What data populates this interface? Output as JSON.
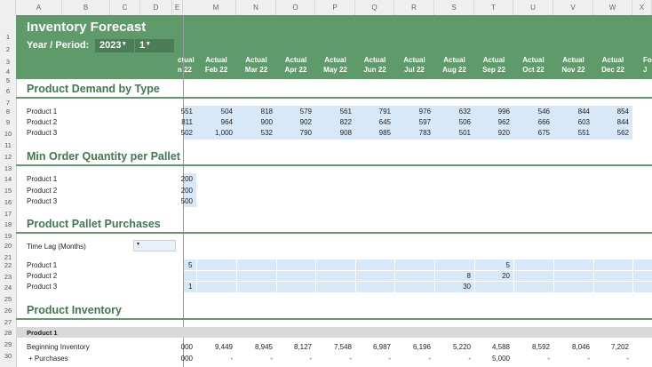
{
  "columns": {
    "left": [
      "A",
      "B",
      "C",
      "D",
      "E"
    ],
    "right": [
      "M",
      "N",
      "O",
      "P",
      "Q",
      "R",
      "S",
      "T",
      "U",
      "V",
      "W",
      "X"
    ]
  },
  "rows": [
    "1",
    "2",
    "3",
    "4",
    "5",
    "6",
    "7",
    "8",
    "9",
    "10",
    "11",
    "12",
    "13",
    "14",
    "15",
    "16",
    "17",
    "18",
    "19",
    "20",
    "21",
    "22",
    "23",
    "24",
    "25",
    "26",
    "27",
    "28",
    "29",
    "30"
  ],
  "header": {
    "title": "Inventory Forecast",
    "period_label": "Year / Period:",
    "year": "2023",
    "period": "1",
    "partial_col_top": "ctual",
    "partial_col_bottom": "n 22",
    "month_headers": [
      {
        "top": "Actual",
        "bottom": "Feb 22"
      },
      {
        "top": "Actual",
        "bottom": "Mar 22"
      },
      {
        "top": "Actual",
        "bottom": "Apr 22"
      },
      {
        "top": "Actual",
        "bottom": "May 22"
      },
      {
        "top": "Actual",
        "bottom": "Jun 22"
      },
      {
        "top": "Actual",
        "bottom": "Jul 22"
      },
      {
        "top": "Actual",
        "bottom": "Aug 22"
      },
      {
        "top": "Actual",
        "bottom": "Sep 22"
      },
      {
        "top": "Actual",
        "bottom": "Oct 22"
      },
      {
        "top": "Actual",
        "bottom": "Nov 22"
      },
      {
        "top": "Actual",
        "bottom": "Dec 22"
      },
      {
        "top": "Fo",
        "bottom": "J"
      }
    ]
  },
  "sections": {
    "demand": "Product Demand by Type",
    "min_order": "Min Order Quantity per Pallet",
    "purchases": "Product Pallet Purchases",
    "inventory": "Product Inventory"
  },
  "demand_rows": [
    {
      "label": "Product 1",
      "partial": "551",
      "values": [
        "504",
        "818",
        "579",
        "561",
        "791",
        "976",
        "632",
        "996",
        "546",
        "844",
        "854"
      ]
    },
    {
      "label": "Product 2",
      "partial": "811",
      "values": [
        "964",
        "900",
        "902",
        "822",
        "645",
        "597",
        "506",
        "962",
        "666",
        "603",
        "844"
      ]
    },
    {
      "label": "Product 3",
      "partial": "502",
      "values": [
        "1,000",
        "532",
        "790",
        "908",
        "985",
        "783",
        "501",
        "920",
        "675",
        "551",
        "562"
      ]
    }
  ],
  "min_order_rows": [
    {
      "label": "Product 1",
      "partial": "200"
    },
    {
      "label": "Product 2",
      "partial": "200"
    },
    {
      "label": "Product 3",
      "partial": "500"
    }
  ],
  "time_lag_label": "Time Lag (Months)",
  "purchase_rows": [
    {
      "label": "Product 1",
      "partial": "5",
      "values": [
        "",
        "",
        "",
        "",
        "",
        "",
        "",
        "5",
        "",
        "",
        "",
        ""
      ]
    },
    {
      "label": "Product 2",
      "partial": "",
      "values": [
        "",
        "",
        "",
        "",
        "",
        "",
        "8",
        "20",
        "",
        "",
        "",
        ""
      ]
    },
    {
      "label": "Product 3",
      "partial": "1",
      "values": [
        "",
        "",
        "",
        "",
        "",
        "",
        "30",
        "",
        "",
        "",
        "",
        ""
      ]
    }
  ],
  "inventory": {
    "product_label": "Product 1",
    "beginning_label": "Beginning Inventory",
    "beginning_partial": "000",
    "beginning_values": [
      "9,449",
      "8,945",
      "8,127",
      "7,548",
      "6,987",
      "6,196",
      "5,220",
      "4,588",
      "8,592",
      "8,046",
      "7,202"
    ],
    "purchases_label": "+ Purchases",
    "purchases_partial": "000",
    "purchases_values": [
      "-",
      "-",
      "-",
      "-",
      "-",
      "-",
      "-",
      "5,000",
      "-",
      "-",
      "-"
    ]
  },
  "colors": {
    "band": "#5e9a6a",
    "section": "#3f7a4c",
    "input_blue": "#d7e8f8"
  }
}
